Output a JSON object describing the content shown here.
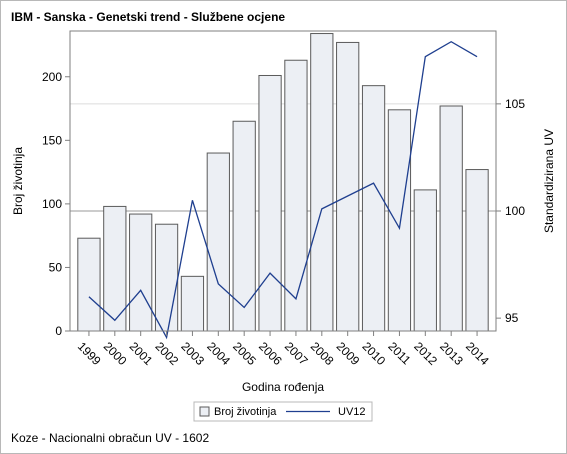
{
  "chart_data": {
    "type": "bar",
    "title": "IBM - Sanska - Genetski trend - Službene ocjene",
    "xlabel": "Godina rođenja",
    "ylabel": "Broj životinja",
    "y2label": "Standardizirana UV",
    "categories": [
      "1999",
      "2000",
      "2001",
      "2002",
      "2003",
      "2004",
      "2005",
      "2006",
      "2007",
      "2008",
      "2009",
      "2010",
      "2011",
      "2012",
      "2013",
      "2014"
    ],
    "ylim": [
      0,
      236
    ],
    "yticks": [
      0,
      50,
      100,
      150,
      200
    ],
    "y2lim": [
      94.4,
      108.4
    ],
    "y2ticks": [
      95,
      100,
      105
    ],
    "series": [
      {
        "name": "Broj životinja",
        "type": "bar",
        "axis": "left",
        "color": "#eceff4",
        "stroke": "#5a5a5a",
        "values": [
          73,
          98,
          92,
          84,
          43,
          140,
          165,
          201,
          213,
          234,
          227,
          193,
          174,
          111,
          177,
          127
        ]
      },
      {
        "name": "UV12",
        "type": "line",
        "axis": "right",
        "color": "#1f3f8f",
        "values": [
          96.0,
          94.9,
          96.3,
          94.1,
          100.5,
          96.6,
          95.5,
          97.1,
          95.9,
          100.1,
          100.7,
          101.3,
          99.2,
          107.2,
          107.9,
          107.2
        ]
      }
    ],
    "reference_lines": [
      {
        "axis": "right",
        "value": 100,
        "color": "#9a9a9a"
      },
      {
        "axis": "right",
        "value": 105,
        "color": "#dcdcdc"
      }
    ],
    "grid": false,
    "legend": "bottom",
    "footnote": "Koze - Nacionalni obračun UV - 1602"
  }
}
